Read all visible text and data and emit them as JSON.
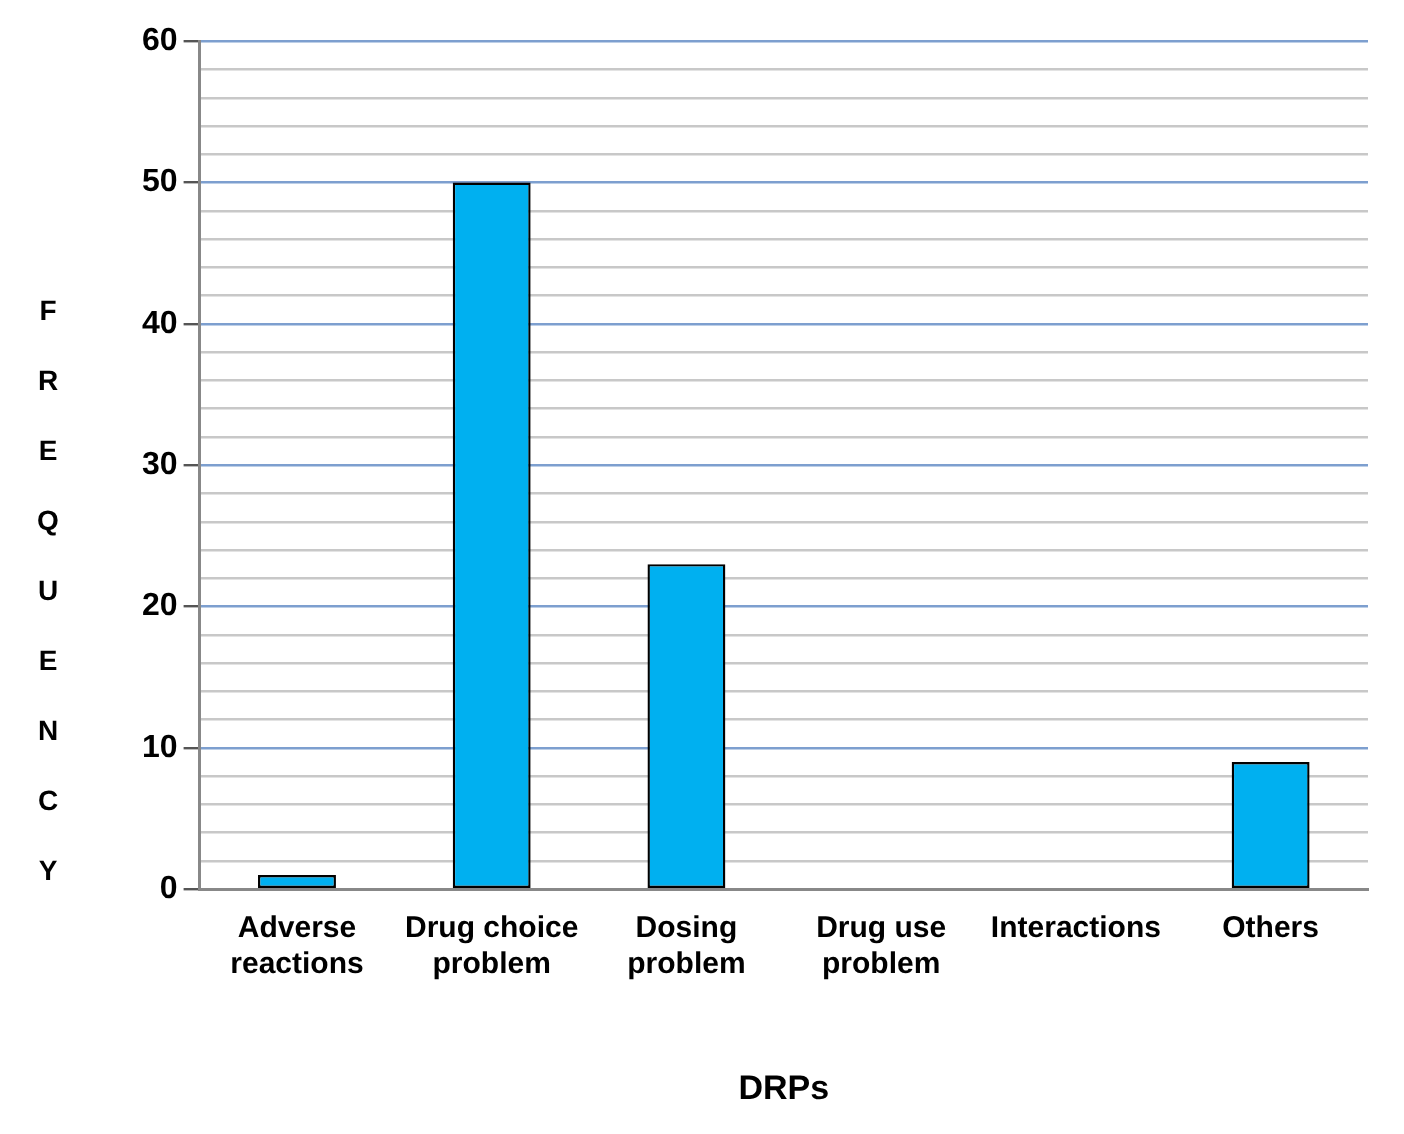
{
  "chart_data": {
    "type": "bar",
    "xlabel": "DRPs",
    "ylabel": "FREQUENCY",
    "categories": [
      "Adverse reactions",
      "Drug choice problem",
      "Dosing problem",
      "Drug use problem",
      "Interactions",
      "Others"
    ],
    "values": [
      1,
      50,
      23,
      0,
      0,
      9
    ],
    "color": "#00b0f0",
    "ylim": [
      0,
      60
    ],
    "yticks": [
      0,
      {
        "value": 2,
        "label": null
      },
      {
        "value": 4,
        "label": null
      },
      {
        "value": 6,
        "label": null
      },
      {
        "value": 8,
        "label": null
      },
      10,
      {
        "value": 12,
        "label": null
      },
      {
        "value": 14,
        "label": null
      },
      {
        "value": 16,
        "label": null
      },
      {
        "value": 18,
        "label": null
      },
      20,
      {
        "value": 22,
        "label": null
      },
      {
        "value": 24,
        "label": null
      },
      {
        "value": 26,
        "label": null
      },
      {
        "value": 28,
        "label": null
      },
      30,
      {
        "value": 32,
        "label": null
      },
      {
        "value": 34,
        "label": null
      },
      {
        "value": 36,
        "label": null
      },
      {
        "value": 38,
        "label": null
      },
      40,
      {
        "value": 42,
        "label": null
      },
      {
        "value": 44,
        "label": null
      },
      {
        "value": 46,
        "label": null
      },
      {
        "value": 48,
        "label": null
      },
      50,
      {
        "value": 52,
        "label": null
      },
      {
        "value": 54,
        "label": null
      },
      {
        "value": 56,
        "label": null
      },
      {
        "value": 58,
        "label": null
      },
      60
    ],
    "grid": "y",
    "legend": false
  }
}
